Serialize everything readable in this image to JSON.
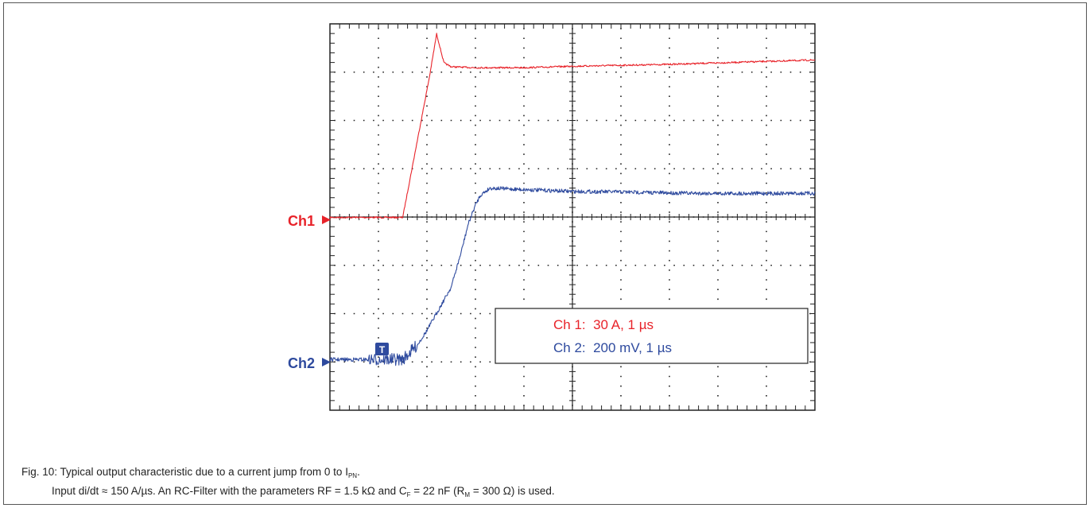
{
  "chart_data": {
    "type": "line",
    "title": "",
    "xlabel": "",
    "ylabel": "",
    "grid": true,
    "x_divisions": 10,
    "y_divisions": 8,
    "x_unit": "µs",
    "xlim": [
      0,
      10
    ],
    "channel_markers": [
      "Ch1",
      "Ch2"
    ],
    "trigger_marker": "T",
    "legend": {
      "placement": "bottom-right",
      "entries": [
        {
          "text": "Ch 1:  30 A, 1 µs",
          "color": "#e8232a"
        },
        {
          "text": "Ch 2:  200 mV, 1 µs",
          "color": "#2e4a9e"
        }
      ]
    },
    "series": [
      {
        "name": "Ch 1",
        "color": "#e8232a",
        "x": [
          0.0,
          0.9,
          1.5,
          2.05,
          2.2,
          2.35,
          2.5,
          3.0,
          4.0,
          5.0,
          6.0,
          7.0,
          8.0,
          9.0,
          10.0
        ],
        "y": [
          0.0,
          0.0,
          0.0,
          2.9,
          3.8,
          3.2,
          3.12,
          3.1,
          3.1,
          3.13,
          3.15,
          3.17,
          3.2,
          3.23,
          3.26
        ]
      },
      {
        "name": "Ch 2",
        "color": "#2e4a9e",
        "x": [
          0.0,
          0.5,
          1.0,
          1.5,
          1.8,
          2.0,
          2.5,
          2.7,
          2.85,
          3.0,
          3.1,
          3.3,
          4.0,
          5.0,
          6.0,
          7.0,
          8.0,
          9.0,
          10.0
        ],
        "y": [
          0.0,
          0.0,
          0.0,
          0.0,
          0.3,
          0.6,
          1.5,
          2.2,
          2.8,
          3.2,
          3.4,
          3.55,
          3.52,
          3.48,
          3.47,
          3.45,
          3.44,
          3.44,
          3.44
        ]
      }
    ]
  },
  "caption": {
    "line1_prefix": "Fig. 10: Typical output characteristic due to a current jump from 0 to I",
    "line1_sub": "PN",
    "line1_suffix": ".",
    "line2_a": "Input di/dt ≈ 150 A/µs. An RC-Filter with the parameters RF = 1.5 kΩ and C",
    "line2_sub1": "F",
    "line2_b": " = 22 nF (R",
    "line2_sub2": "M",
    "line2_c": " = 300 Ω) is used."
  }
}
